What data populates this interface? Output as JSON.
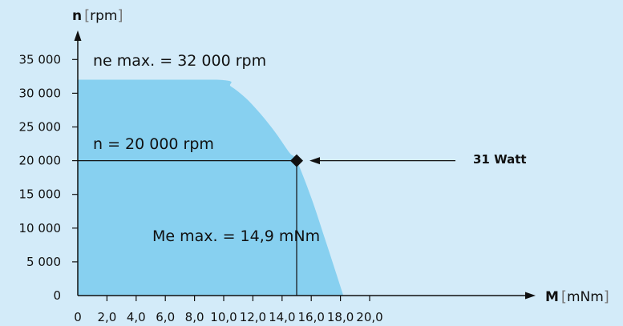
{
  "chart_data": {
    "type": "area",
    "title": "",
    "xlabel": {
      "symbol": "M",
      "unit": "mNm"
    },
    "ylabel": {
      "symbol": "n",
      "unit": "rpm"
    },
    "xlim": [
      0,
      22
    ],
    "ylim": [
      0,
      38000
    ],
    "x_ticks": [
      "0",
      "2,0",
      "4,0",
      "6,0",
      "8,0",
      "10,0",
      "12,0",
      "14,0",
      "16,0",
      "18,0",
      "20,0"
    ],
    "y_ticks": [
      "0",
      "5 000",
      "10 000",
      "15 000",
      "20 000",
      "25 000",
      "30 000",
      "35 000"
    ],
    "series": [
      {
        "x": [
          0,
          9.5,
          10.5,
          11.5,
          12.5,
          13.5,
          14.5,
          15,
          16,
          17,
          18.2
        ],
        "y": [
          32000,
          32000,
          31000,
          29300,
          27000,
          24300,
          21200,
          20000,
          14500,
          8000,
          0
        ]
      }
    ],
    "operating_point": {
      "x": 15,
      "y": 20000
    },
    "annotations": {
      "max_speed": "ne max. = 32 000 rpm",
      "speed": "n = 20 000 rpm",
      "torque": "Me max. = 14,9 mNm",
      "power": "31 Watt"
    },
    "colors": {
      "area": "#87d0f0",
      "background": "#d3ebf9",
      "lines": "#111111"
    },
    "grid": false,
    "legend": "none"
  }
}
